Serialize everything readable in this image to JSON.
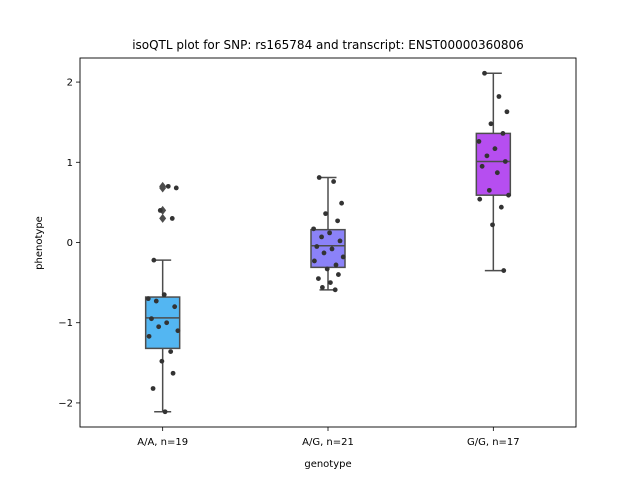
{
  "chart_data": {
    "type": "box",
    "title": "isoQTL plot for SNP: rs165784 and transcript: ENST00000360806",
    "xlabel": "genotype",
    "ylabel": "phenotype",
    "ylim": [
      -2.3,
      2.3
    ],
    "yticks": [
      -2,
      -1,
      0,
      1,
      2
    ],
    "yticklabels": [
      "−2",
      "−1",
      "0",
      "1",
      "2"
    ],
    "categories": [
      "A/A, n=19",
      "A/G, n=21",
      "G/G, n=17"
    ],
    "colors": [
      "#53b6f2",
      "#8b82f8",
      "#b64ef0"
    ],
    "point_color": "#333333",
    "boxes": [
      {
        "q1": -1.32,
        "median": -0.94,
        "q3": -0.68,
        "whisker_low": -2.11,
        "whisker_high": -0.22,
        "outliers": [
          0.4,
          0.3,
          0.7,
          0.68
        ]
      },
      {
        "q1": -0.31,
        "median": -0.04,
        "q3": 0.16,
        "whisker_low": -0.59,
        "whisker_high": 0.81,
        "outliers": []
      },
      {
        "q1": 0.59,
        "median": 1.01,
        "q3": 1.36,
        "whisker_low": -0.35,
        "whisker_high": 2.11,
        "outliers": []
      }
    ],
    "points": [
      [
        -0.22,
        0.7,
        0.68,
        0.4,
        0.3,
        -0.7,
        -0.65,
        -0.73,
        -0.8,
        -0.95,
        -1.0,
        -1.05,
        -1.1,
        -1.17,
        -1.36,
        -1.48,
        -1.63,
        -1.82,
        -2.11
      ],
      [
        0.81,
        0.76,
        0.49,
        0.36,
        0.27,
        0.17,
        0.12,
        0.07,
        0.02,
        -0.05,
        -0.08,
        -0.13,
        -0.18,
        -0.23,
        -0.28,
        -0.33,
        -0.4,
        -0.45,
        -0.5,
        -0.56,
        -0.59
      ],
      [
        2.11,
        1.82,
        1.63,
        1.48,
        1.36,
        1.26,
        1.17,
        1.08,
        1.01,
        0.95,
        0.87,
        0.65,
        0.59,
        0.54,
        0.44,
        0.22,
        -0.35
      ]
    ]
  }
}
